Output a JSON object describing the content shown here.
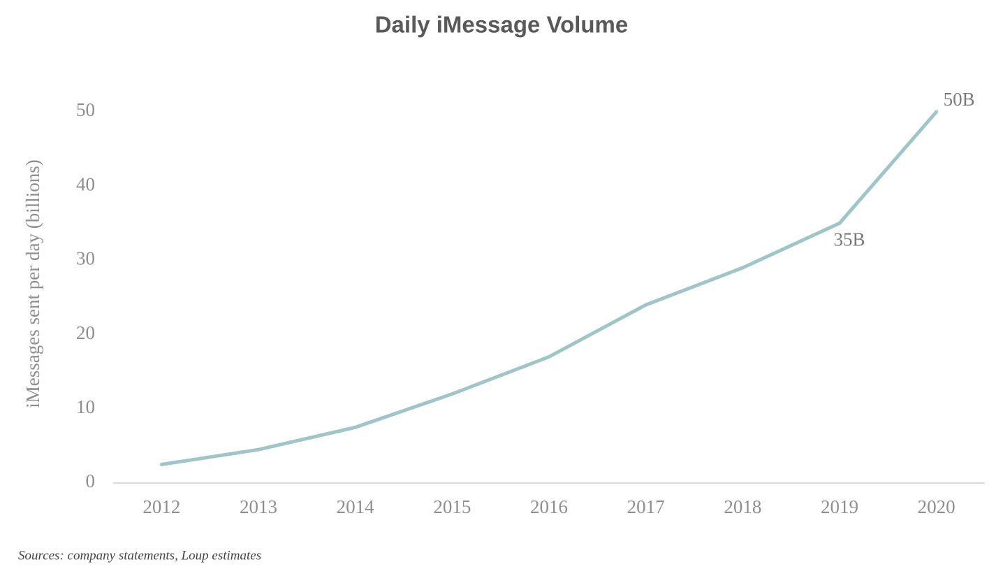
{
  "chart_data": {
    "type": "line",
    "title": "Daily iMessage Volume",
    "y_label": "iMessages sent per day (billions)",
    "source": "Sources: company statements, Loup estimates",
    "categories": [
      "2012",
      "2013",
      "2014",
      "2015",
      "2016",
      "2017",
      "2018",
      "2019",
      "2020"
    ],
    "values": [
      2.5,
      4.5,
      7.5,
      12,
      17,
      24,
      29,
      35,
      50
    ],
    "value_labels": [
      null,
      null,
      null,
      null,
      null,
      null,
      null,
      "35B",
      "50B"
    ],
    "color": "#9fc5c8",
    "ylim": [
      0,
      50
    ],
    "yticks": [
      0,
      10,
      20,
      30,
      40,
      50
    ],
    "grid": false
  }
}
